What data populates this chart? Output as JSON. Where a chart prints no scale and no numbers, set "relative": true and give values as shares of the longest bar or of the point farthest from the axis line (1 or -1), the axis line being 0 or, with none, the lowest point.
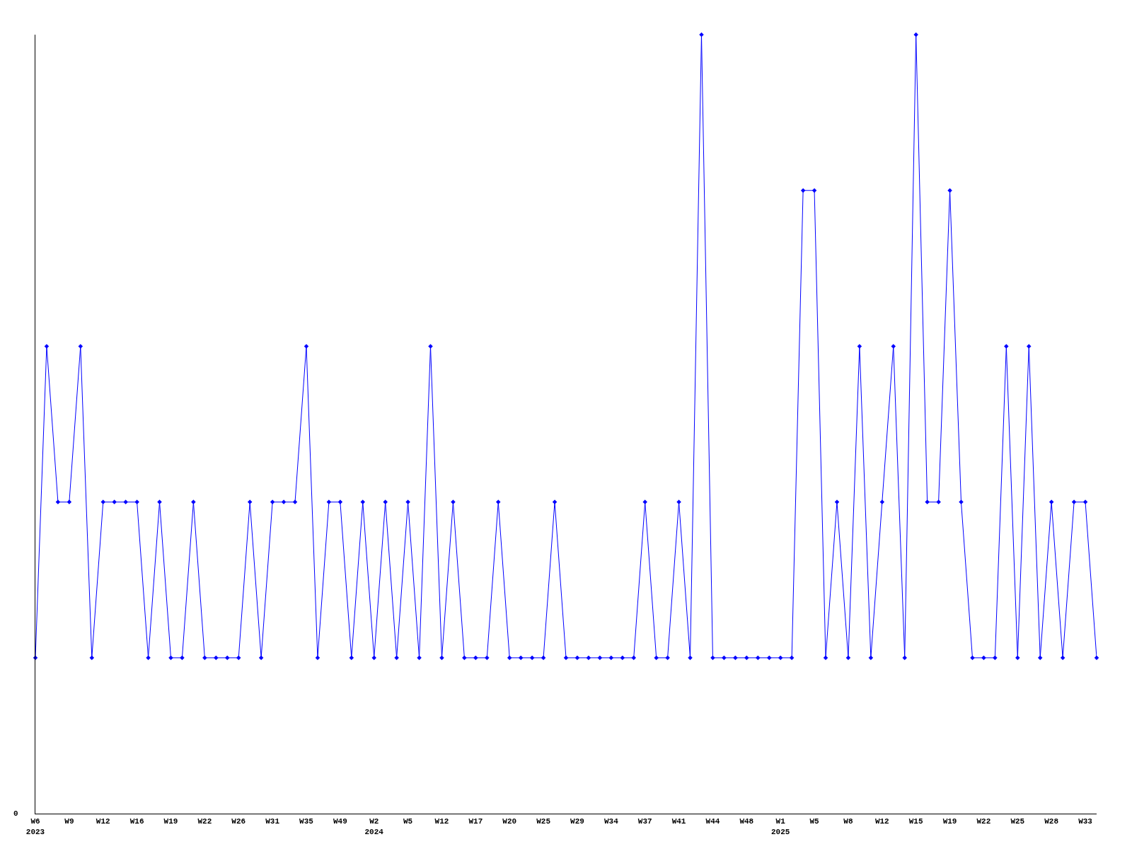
{
  "chart_data": {
    "type": "line",
    "relative": true,
    "marker": "diamond",
    "line_style": "solid",
    "grid": false,
    "annotations": [
      "0"
    ],
    "categories": [
      "W6\n2023",
      null,
      null,
      "W9",
      null,
      null,
      "W12",
      null,
      null,
      "W16",
      null,
      null,
      "W19",
      null,
      null,
      "W22",
      null,
      null,
      "W26",
      null,
      null,
      "W31",
      null,
      null,
      "W35",
      null,
      null,
      "W49",
      null,
      null,
      "W2\n2024",
      null,
      null,
      "W5",
      null,
      null,
      "W12",
      null,
      null,
      "W17",
      null,
      null,
      "W20",
      null,
      null,
      "W25",
      null,
      null,
      "W29",
      null,
      null,
      "W34",
      null,
      null,
      "W37",
      null,
      null,
      "W41",
      null,
      null,
      "W44",
      null,
      null,
      "W48",
      null,
      null,
      "W1\n2025",
      null,
      null,
      "W5",
      null,
      null,
      "W8",
      null,
      null,
      "W12",
      null,
      null,
      "W15",
      null,
      null,
      "W19",
      null,
      null,
      "W22",
      null,
      null,
      "W25",
      null,
      null,
      "W28",
      null,
      null,
      "W33",
      null
    ],
    "series": [
      {
        "color": "#0000ff",
        "values": [
          0.2,
          0.6,
          0.4,
          0.4,
          0.6,
          0.2,
          0.4,
          0.4,
          0.4,
          0.4,
          0.2,
          0.4,
          0.2,
          0.2,
          0.4,
          0.2,
          0.2,
          0.2,
          0.2,
          0.4,
          0.2,
          0.4,
          0.4,
          0.4,
          0.6,
          0.2,
          0.4,
          0.4,
          0.2,
          0.4,
          0.2,
          0.4,
          0.2,
          0.4,
          0.2,
          0.6,
          0.2,
          0.4,
          0.2,
          0.2,
          0.2,
          0.4,
          0.2,
          0.2,
          0.2,
          0.2,
          0.4,
          0.2,
          0.2,
          0.2,
          0.2,
          0.2,
          0.2,
          0.2,
          0.4,
          0.2,
          0.2,
          0.4,
          0.2,
          1.0,
          0.2,
          0.2,
          0.2,
          0.2,
          0.2,
          0.2,
          0.2,
          0.2,
          0.8,
          0.8,
          0.2,
          0.4,
          0.2,
          0.6,
          0.2,
          0.4,
          0.6,
          0.2,
          1.0,
          0.4,
          0.4,
          0.8,
          0.4,
          0.2,
          0.2,
          0.2,
          0.6,
          0.2,
          0.6,
          0.2,
          0.4,
          0.2,
          0.4,
          0.4,
          0.2
        ]
      }
    ]
  }
}
